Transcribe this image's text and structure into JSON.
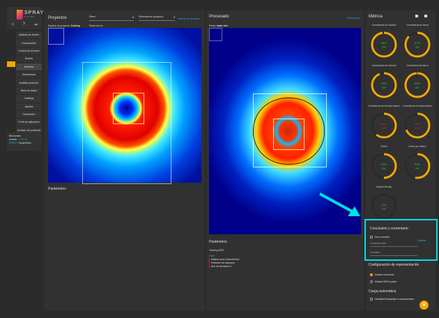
{
  "logo": {
    "brand": "SPRAY",
    "sub": "VISION"
  },
  "sidebar": {
    "icons": [
      "home-icon",
      "help-icon",
      "logout-icon"
    ],
    "items": [
      {
        "label": "Análisis de diseño"
      },
      {
        "label": "Comparación"
      },
      {
        "label": "Control de proceso"
      },
      {
        "label": "Robots"
      },
      {
        "label": "Métricas"
      },
      {
        "label": "Estadísticas"
      },
      {
        "label": "Análisis profundo"
      },
      {
        "label": "Base de datos"
      },
      {
        "label": "Catálogo"
      },
      {
        "label": "Ajustes"
      },
      {
        "label": "Calibración"
      },
      {
        "label": "Perfil de aplicación"
      },
      {
        "label": "Creador de protocolo"
      }
    ],
    "welcome": "Bienvenido",
    "version_label": "versión -",
    "version": "1.10.10",
    "user_label": "ROBOT",
    "user": "SprayVision"
  },
  "projects": {
    "title": "Proyectos",
    "plant": "Plant",
    "project_select": "Seleccionar proyecto",
    "link": "Guardar de proyecto",
    "project_name_label": "Nombre de proyecto:",
    "project_name": "Training",
    "golden_label": "Pauta de oro:",
    "params_title": "Parámetros"
  },
  "processed": {
    "title": "Procesado",
    "select_link": "Seleccionar...",
    "pattern_label": "Pauta:",
    "pattern": "static test",
    "params_title": "Parámetros",
    "training": "Training RED",
    "edit": "Editar",
    "params": [
      "Materia seca (Volumétrico)",
      "Pudrición de campana",
      "Aire de formación 1"
    ]
  },
  "metrics": {
    "title": "Métrica",
    "colors": {
      "ring": "#f5a800",
      "ok": "#2ecc2e",
      "nok": "#e02020"
    },
    "gauges": [
      {
        "label": "Coincidencia de volumen",
        "value": 98,
        "status": "OK"
      },
      {
        "label": "Coincidencia de forma",
        "value": 87,
        "status": "OK"
      },
      {
        "label": "Coincidencia de anchura",
        "value": 94,
        "status": "OK"
      },
      {
        "label": "Coincidencia de altura",
        "value": 99,
        "status": "OK"
      },
      {
        "label": "Coincidencia de anchura interior",
        "value": 61,
        "status": "NOK"
      },
      {
        "label": "Coincidencia de altura interior",
        "value": 69,
        "status": "NOK"
      },
      {
        "label": "Centro",
        "value": 50,
        "status": "OK"
      },
      {
        "label": "Centro por interior",
        "value": 53,
        "status": "OK"
      },
      {
        "label": "Droplet Density",
        "value": 0,
        "status": "OK"
      }
    ]
  },
  "conclusion": {
    "title": "Conclusión y comentario",
    "error_label": "Error cometido",
    "save": "Guardar",
    "note_placeholder": "Conclusion note",
    "comment_placeholder": "Comment"
  },
  "display": {
    "title": "Configuración de representación",
    "opt1": "Mostrar contornos",
    "opt2": "Mostrar 5000 puntos"
  },
  "autoload": {
    "title": "Carga automática",
    "toggle": "Habilitar/Deshabilitar la característica"
  }
}
